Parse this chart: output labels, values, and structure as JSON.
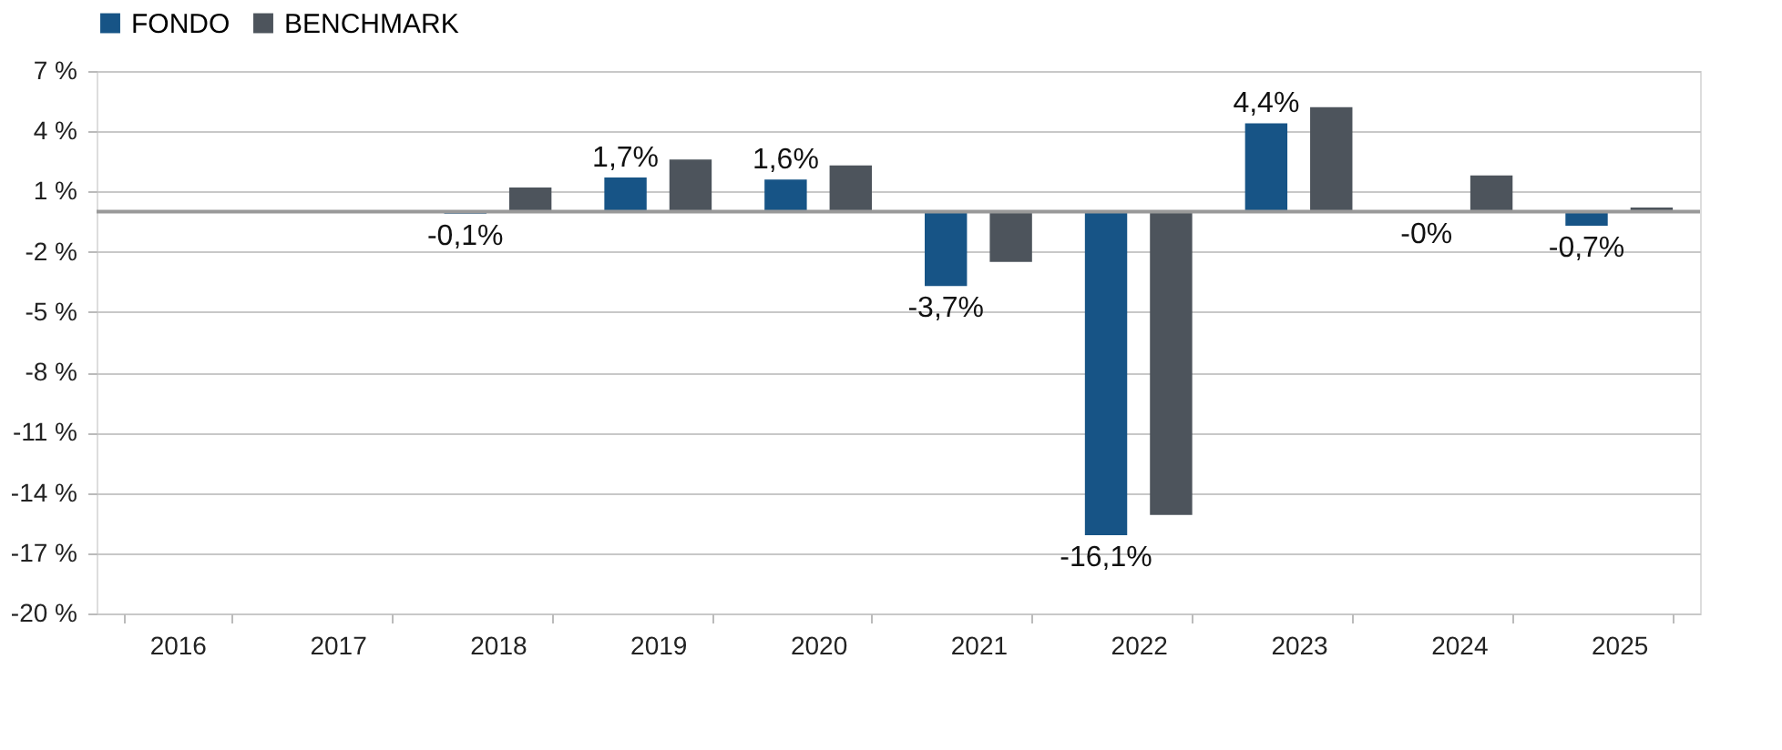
{
  "chart_data": {
    "type": "bar",
    "categories": [
      "2016",
      "2017",
      "2018",
      "2019",
      "2020",
      "2021",
      "2022",
      "2023",
      "2024",
      "2025"
    ],
    "series": [
      {
        "name": "FONDO",
        "color": "#175486",
        "values": [
          null,
          null,
          -0.1,
          1.7,
          1.6,
          -3.7,
          -16.1,
          4.4,
          -0.03,
          -0.7
        ],
        "value_labels": [
          null,
          null,
          "-0,1%",
          "1,7%",
          "1,6%",
          "-3,7%",
          "-16,1%",
          "4,4%",
          "-0%",
          "-0,7%"
        ]
      },
      {
        "name": "BENCHMARK",
        "color": "#4d545c",
        "values": [
          null,
          null,
          1.2,
          2.6,
          2.3,
          -2.5,
          -15.1,
          5.2,
          1.8,
          0.2
        ]
      }
    ],
    "ylim": [
      -20,
      7
    ],
    "yticks": [
      {
        "value": 7,
        "label": "7 %"
      },
      {
        "value": 4,
        "label": "4 %"
      },
      {
        "value": 1,
        "label": "1 %"
      },
      {
        "value": -2,
        "label": "-2 %"
      },
      {
        "value": -5,
        "label": "-5 %"
      },
      {
        "value": -8,
        "label": "-8 %"
      },
      {
        "value": -11,
        "label": "-11 %"
      },
      {
        "value": -14,
        "label": "-14 %"
      },
      {
        "value": -17,
        "label": "-17 %"
      },
      {
        "value": -20,
        "label": "-20 %"
      }
    ],
    "ref_lines": [
      {
        "axis": "y",
        "value": 0,
        "color": "#999999"
      }
    ],
    "grid": "y",
    "legend": "top"
  }
}
